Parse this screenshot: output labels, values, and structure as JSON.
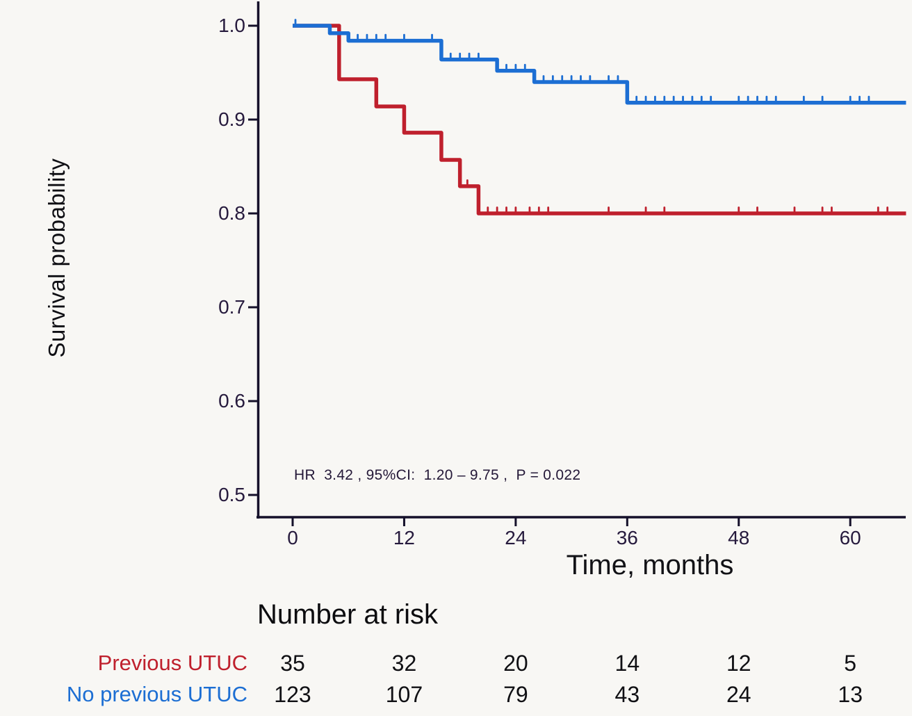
{
  "figure": {
    "y_axis_title": "Survival probability",
    "x_axis_title": "Time, months",
    "annotation": "HR  3.42 , 95%CI:  1.20 – 9.75 ,  P = 0.022",
    "y_tick_labels": [
      "1.0",
      "0.9",
      "0.8",
      "0.7",
      "0.6",
      "0.5"
    ],
    "x_tick_labels": [
      "0",
      "12",
      "24",
      "36",
      "48",
      "60"
    ],
    "palette": {
      "previous_utuc_red": "#bf202d",
      "no_previous_utuc_blue": "#1c6ed3",
      "axis_line": "#15102a",
      "tick_text": "#261a3d",
      "title_text": "#121216"
    },
    "risk_table": {
      "title": "Number at risk",
      "rows": [
        {
          "label": "Previous UTUC",
          "color": "#bf202d",
          "values": [
            "35",
            "32",
            "20",
            "14",
            "12",
            "5"
          ]
        },
        {
          "label": "No previous UTUC",
          "color": "#1c6ed3",
          "values": [
            "123",
            "107",
            "79",
            "43",
            "24",
            "13"
          ]
        }
      ]
    }
  },
  "chart_data": {
    "type": "line",
    "subtype": "kaplan_meier_step_curves",
    "title": "",
    "xlabel": "Time, months",
    "ylabel": "Survival probability",
    "xlim": [
      0,
      66
    ],
    "ylim": [
      0.475,
      1.0
    ],
    "xticks": [
      0,
      12,
      24,
      36,
      48,
      60
    ],
    "yticks": [
      1.0,
      0.9,
      0.8,
      0.7,
      0.6,
      0.5
    ],
    "grid": false,
    "legend_position": "none",
    "annotation": {
      "text": "HR  3.42 , 95%CI:  1.20 – 9.75 ,  P = 0.022",
      "x_months": 0.2,
      "y_prob": 0.52
    },
    "series": [
      {
        "name": "Previous UTUC",
        "color": "#bf202d",
        "steps": [
          [
            0,
            1.0
          ],
          [
            5,
            0.943
          ],
          [
            9,
            0.914
          ],
          [
            12,
            0.886
          ],
          [
            16,
            0.857
          ],
          [
            18,
            0.829
          ],
          [
            20,
            0.8
          ],
          [
            66,
            0.8
          ]
        ],
        "censor_times": [
          18.8,
          21,
          22,
          23,
          24,
          25.5,
          26.5,
          27.5,
          34,
          38,
          40,
          48,
          50,
          54,
          57,
          58,
          63,
          64
        ],
        "number_at_risk": [
          35,
          32,
          20,
          14,
          12,
          5
        ]
      },
      {
        "name": "No previous UTUC",
        "color": "#1c6ed3",
        "steps": [
          [
            0,
            1.0
          ],
          [
            4,
            0.992
          ],
          [
            6,
            0.984
          ],
          [
            16,
            0.964
          ],
          [
            22,
            0.952
          ],
          [
            26,
            0.94
          ],
          [
            36,
            0.918
          ],
          [
            66,
            0.918
          ]
        ],
        "censor_times": [
          0.3,
          7,
          8,
          9,
          10,
          12,
          15,
          17,
          18,
          19,
          20,
          23,
          24,
          25,
          27,
          28,
          29,
          30,
          31,
          32,
          34,
          35,
          37,
          38,
          39,
          40,
          41,
          42,
          43,
          44,
          45,
          48,
          49,
          50,
          51,
          52,
          55,
          57,
          60,
          61,
          62
        ],
        "number_at_risk": [
          123,
          107,
          79,
          43,
          24,
          13
        ]
      }
    ]
  }
}
